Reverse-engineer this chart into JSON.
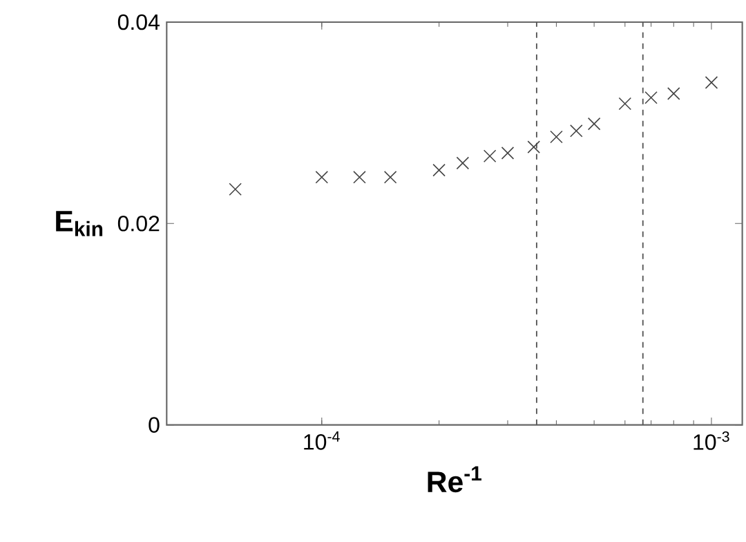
{
  "chart_data": {
    "type": "scatter",
    "xlabel": "Re$^{-1}$",
    "ylabel": "E$_{kin}$",
    "x": [
      6e-05,
      0.0001,
      0.000125,
      0.00015,
      0.0002,
      0.00023,
      0.00027,
      0.0003,
      0.00035,
      0.0004,
      0.00045,
      0.0005,
      0.0006,
      0.0007,
      0.0008,
      0.001
    ],
    "series": [
      {
        "color": "#444444",
        "values": [
          0.0234,
          0.0246,
          0.0246,
          0.0246,
          0.0253,
          0.026,
          0.0267,
          0.027,
          0.0276,
          0.0286,
          0.0292,
          0.0299,
          0.0319,
          0.0325,
          0.0329,
          0.034
        ]
      }
    ],
    "marker": "cross",
    "log": "x",
    "xlim": [
      4e-05,
      0.0012
    ],
    "ylim": [
      0,
      0.04
    ],
    "xticks": [
      {
        "value": 0.0001,
        "label": "10$^{-4}$"
      },
      {
        "value": 0.001,
        "label": "10$^{-3}$"
      }
    ],
    "yticks": [
      0,
      0.02,
      0.04
    ],
    "ref_lines": [
      {
        "axis": "x",
        "value": 0.000356,
        "color": "#555555",
        "line_style": "dashed"
      },
      {
        "axis": "x",
        "value": 0.000667,
        "color": "#555555",
        "line_style": "dashed"
      }
    ]
  }
}
